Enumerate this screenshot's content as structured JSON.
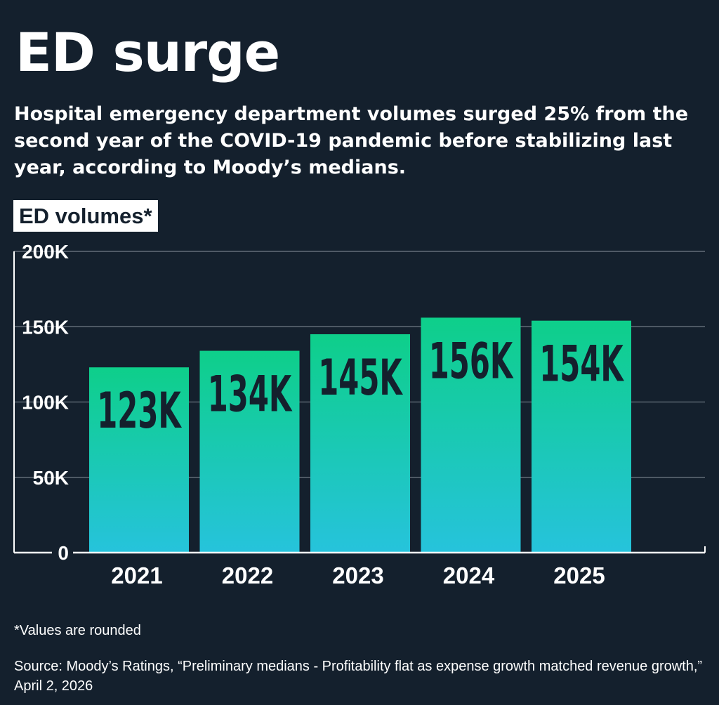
{
  "title": "ED surge",
  "subtitle": "Hospital emergency department volumes surged 25% from the second year of the COVID-19 pandemic before stabilizing last year, according to Moody’s medians.",
  "footnote": "*Values are rounded",
  "source": "Source: Moody’s Ratings, “Preliminary medians - Profitability flat as expense growth matched revenue growth,” April 2, 2026",
  "colors": {
    "background": "#14202d",
    "bar_top": "#0ecf8a",
    "bar_bottom": "#26c3dc",
    "bar_label": "#14202d",
    "gridline": "#8a949e",
    "text": "#ffffff"
  },
  "chart_data": {
    "type": "bar",
    "ylabel": "ED volumes*",
    "categories": [
      "2021",
      "2022",
      "2023",
      "2024",
      "2025"
    ],
    "values": [
      123000,
      134000,
      145000,
      156000,
      154000
    ],
    "data_labels": [
      "123K",
      "134K",
      "145K",
      "156K",
      "154K"
    ],
    "y_ticks": [
      0,
      50000,
      100000,
      150000,
      200000
    ],
    "y_tick_labels": [
      "0",
      "50K",
      "100K",
      "150K",
      "200K"
    ],
    "ylim": [
      0,
      200000
    ],
    "grid": true,
    "legend": "none"
  }
}
